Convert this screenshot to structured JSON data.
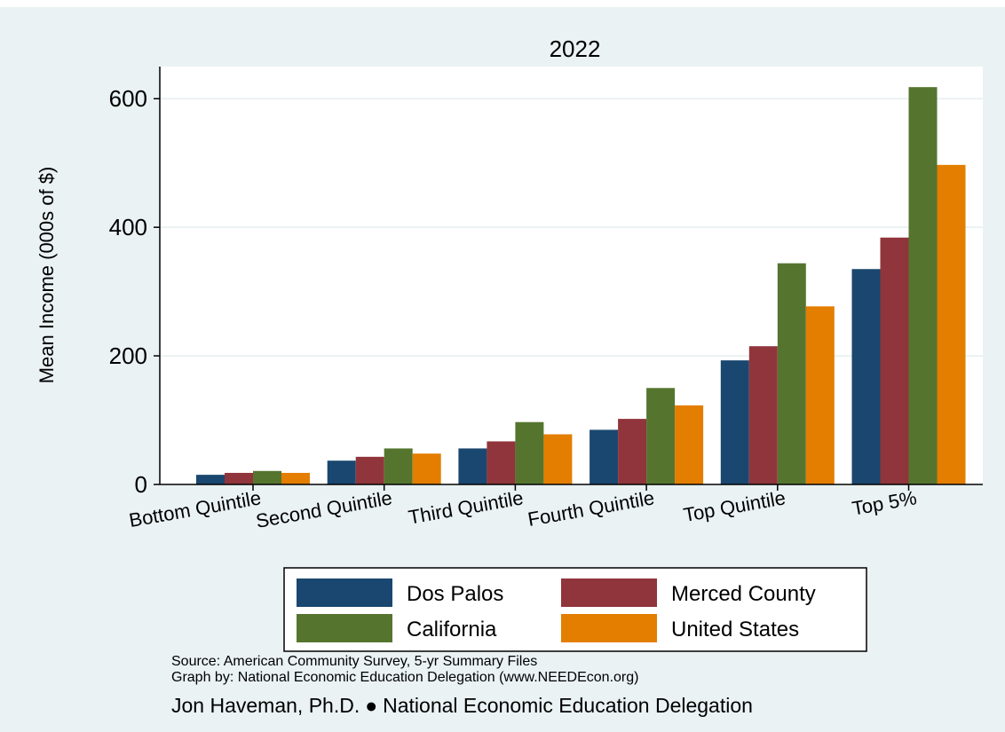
{
  "chart_data": {
    "type": "bar",
    "title": "2022",
    "ylabel": "Mean Income (000s of $)",
    "xlabel": "",
    "ylim": [
      0,
      650
    ],
    "yticks": [
      0,
      200,
      400,
      600
    ],
    "grid": true,
    "legend_position": "bottom",
    "categories": [
      "Bottom Quintile",
      "Second Quintile",
      "Third Quintile",
      "Fourth Quintile",
      "Top Quintile",
      "Top 5%"
    ],
    "series": [
      {
        "name": "Dos Palos",
        "color": "#1a476f",
        "values": [
          15,
          37,
          56,
          85,
          193,
          335
        ]
      },
      {
        "name": "Merced County",
        "color": "#90353b",
        "values": [
          18,
          43,
          67,
          102,
          215,
          384
        ]
      },
      {
        "name": "California",
        "color": "#55752f",
        "values": [
          21,
          56,
          97,
          150,
          344,
          618
        ]
      },
      {
        "name": "United States",
        "color": "#e37e00",
        "values": [
          18,
          48,
          78,
          123,
          277,
          497
        ]
      }
    ]
  },
  "footer": {
    "source": "Source: American Community Survey, 5-yr Summary Files",
    "graph_by": "Graph by: National Economic Education Delegation (www.NEEDEcon.org)",
    "author": "Jon Haveman, Ph.D.",
    "bullet": "●",
    "organization": "National Economic Education Delegation"
  },
  "colors": {
    "background": "#eaf2f3",
    "plot_background": "#ffffff",
    "gridline": "#eaf2f3"
  }
}
